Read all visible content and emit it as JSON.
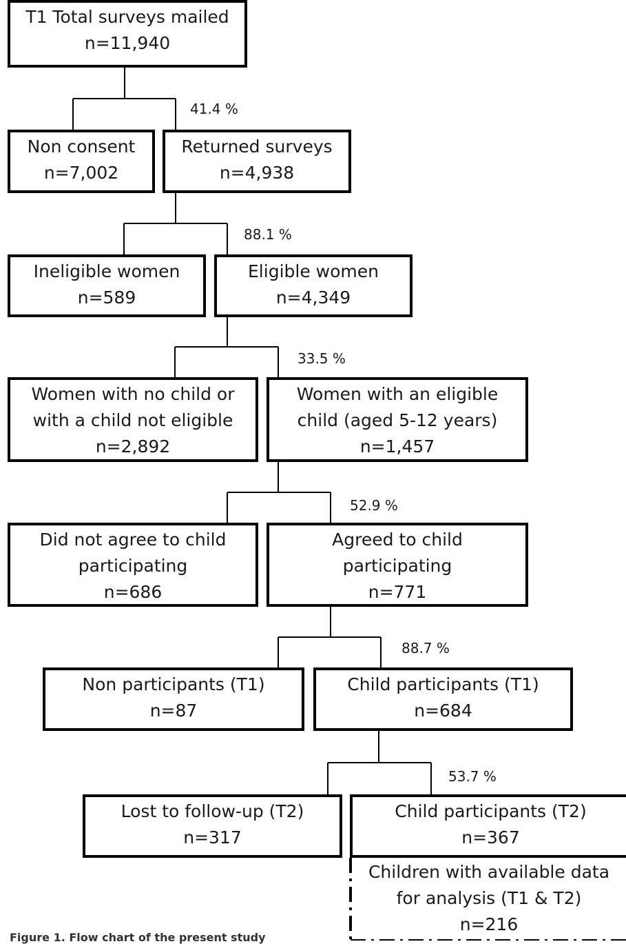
{
  "nodes": {
    "total_mailed": {
      "lines": [
        "T1 Total surveys mailed",
        "n=11,940"
      ]
    },
    "non_consent": {
      "lines": [
        "Non consent",
        "n=7,002"
      ]
    },
    "returned": {
      "lines": [
        "Returned surveys",
        "n=4,938"
      ]
    },
    "ineligible": {
      "lines": [
        "Ineligible women",
        "n=589"
      ]
    },
    "eligible": {
      "lines": [
        "Eligible women",
        "n=4,349"
      ]
    },
    "no_child": {
      "lines": [
        "Women with no child or",
        "with a child not eligible",
        "n=2,892"
      ]
    },
    "eligible_child": {
      "lines": [
        "Women with an eligible",
        "child (aged 5-12 years)",
        "n=1,457"
      ]
    },
    "did_not_agree": {
      "lines": [
        "Did not agree to child",
        "participating",
        "n=686"
      ]
    },
    "agreed": {
      "lines": [
        "Agreed to child",
        "participating",
        "n=771"
      ]
    },
    "non_participants": {
      "lines": [
        "Non participants (T1)",
        "n=87"
      ]
    },
    "participants_t1": {
      "lines": [
        "Child participants (T1)",
        "n=684"
      ]
    },
    "lost_followup": {
      "lines": [
        "Lost to follow-up (T2)",
        "n=317"
      ]
    },
    "participants_t2": {
      "lines": [
        "Child participants (T2)",
        "n=367"
      ]
    },
    "available_data": {
      "lines": [
        "Children with available data",
        "for analysis (T1 & T2)",
        "n=216"
      ]
    }
  },
  "percentages": {
    "returned": "41.4 %",
    "eligible": "88.1 %",
    "eligible_child": "33.5 %",
    "agreed": "52.9 %",
    "participants_t1": "88.7 %",
    "participants_t2": "53.7 %"
  },
  "caption": "Figure 1. Flow chart of the present study"
}
